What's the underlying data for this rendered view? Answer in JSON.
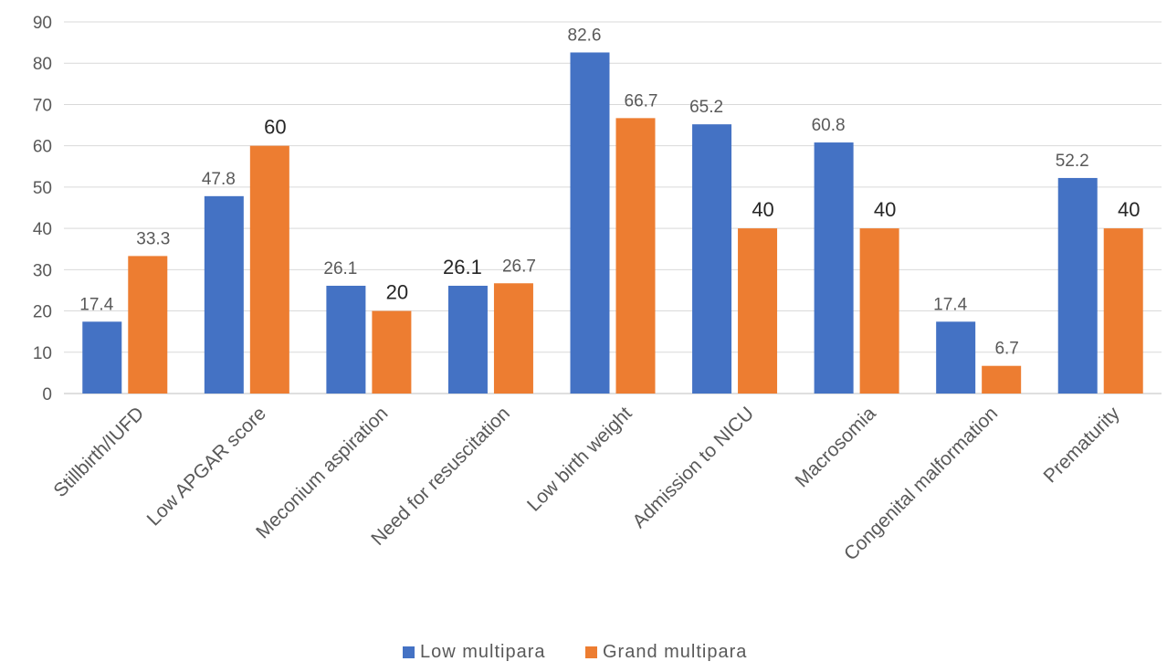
{
  "chart_data": {
    "type": "bar",
    "categories": [
      "Stillbirth/IUFD",
      "Low APGAR score",
      "Meconium aspiration",
      "Need for resuscitation",
      "Low birth weight",
      "Admission to NICU",
      "Macrosomia",
      "Congenital malformation",
      "Prematurity"
    ],
    "series": [
      {
        "name": "Low multipara",
        "color": "#4472C4",
        "values": [
          17.4,
          47.8,
          26.1,
          26.1,
          82.6,
          65.2,
          60.8,
          17.4,
          52.2
        ],
        "labels": [
          "17.4",
          "47.8",
          "26.1",
          "26.1",
          "82.6",
          "65.2",
          "60.8",
          "17.4",
          "52.2"
        ]
      },
      {
        "name": "Grand multipara",
        "color": "#ED7D31",
        "values": [
          33.3,
          60,
          20,
          26.7,
          66.7,
          40,
          40,
          6.7,
          40
        ],
        "labels": [
          "33.3",
          "60",
          "20",
          "26.7",
          "66.7",
          "40",
          "40",
          "6.7",
          "40"
        ]
      }
    ],
    "y_ticks": [
      "0",
      "10",
      "20",
      "30",
      "40",
      "50",
      "60",
      "70",
      "80",
      "90"
    ],
    "ylim": [
      0,
      90
    ],
    "grid": true,
    "legend_position": "bottom"
  }
}
